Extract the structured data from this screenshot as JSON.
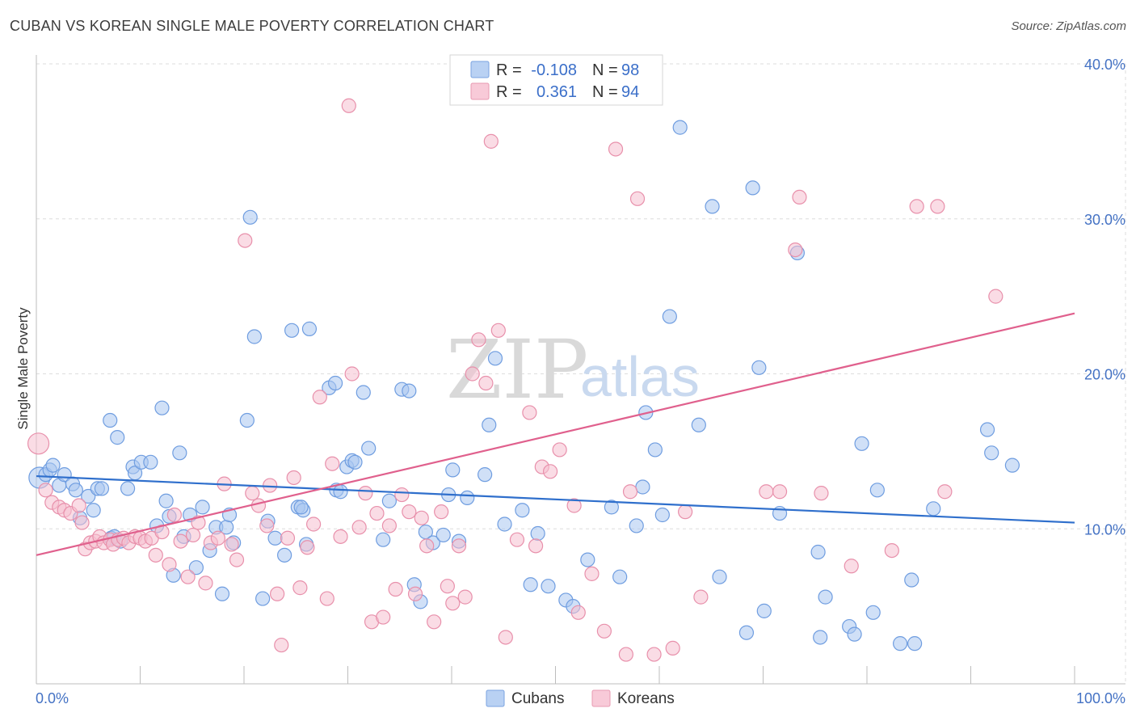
{
  "title": "CUBAN VS KOREAN SINGLE MALE POVERTY CORRELATION CHART",
  "source": "Source: ZipAtlas.com",
  "watermark": {
    "zip": "ZIP",
    "atlas": "atlas"
  },
  "colors": {
    "cubans_fill": "#a9c6f0",
    "cubans_stroke": "#6f9de0",
    "cubans_line": "#2f6fcc",
    "koreans_fill": "#f6c0d0",
    "koreans_stroke": "#e890ab",
    "koreans_line": "#e0608d",
    "grid": "#dddddd",
    "axis_label": "#4472c4"
  },
  "legend": {
    "rows": [
      {
        "r_label": "R =",
        "r_value": "-0.108",
        "n_label": "N =",
        "n_value": "98"
      },
      {
        "r_label": "R =",
        "r_value": "0.361",
        "n_label": "N =",
        "n_value": "94"
      }
    ]
  },
  "chart_data": {
    "type": "scatter",
    "title": "CUBAN VS KOREAN SINGLE MALE POVERTY CORRELATION CHART",
    "xlabel": "",
    "ylabel": "Single Male Poverty",
    "xlim": [
      0,
      100
    ],
    "ylim": [
      0,
      40
    ],
    "x_tick_labels": [
      "0.0%",
      "100.0%"
    ],
    "y_ticks": [
      10,
      20,
      30,
      40
    ],
    "y_tick_labels": [
      "10.0%",
      "20.0%",
      "30.0%",
      "40.0%"
    ],
    "grid": true,
    "legend_position": "top-center",
    "series": [
      {
        "name": "Cubans",
        "trend": {
          "x": [
            0,
            100
          ],
          "y": [
            13.4,
            10.4
          ]
        },
        "points": [
          [
            0.3,
            13.3
          ],
          [
            0.9,
            13.5
          ],
          [
            1.3,
            13.8
          ],
          [
            1.6,
            14.1
          ],
          [
            2.2,
            12.8
          ],
          [
            2.7,
            13.5
          ],
          [
            3.5,
            12.9
          ],
          [
            3.8,
            12.5
          ],
          [
            4.2,
            10.7
          ],
          [
            5.0,
            12.1
          ],
          [
            5.5,
            11.2
          ],
          [
            5.9,
            12.6
          ],
          [
            6.3,
            12.6
          ],
          [
            7.1,
            17.0
          ],
          [
            7.8,
            15.9
          ],
          [
            7.2,
            9.4
          ],
          [
            7.5,
            9.5
          ],
          [
            8.1,
            9.2
          ],
          [
            8.8,
            12.6
          ],
          [
            9.3,
            14.0
          ],
          [
            9.5,
            13.6
          ],
          [
            10.1,
            14.3
          ],
          [
            11.0,
            14.3
          ],
          [
            11.6,
            10.2
          ],
          [
            12.1,
            17.8
          ],
          [
            12.5,
            11.8
          ],
          [
            12.8,
            10.8
          ],
          [
            13.2,
            7.0
          ],
          [
            13.8,
            14.9
          ],
          [
            14.2,
            9.5
          ],
          [
            14.8,
            10.9
          ],
          [
            15.4,
            7.5
          ],
          [
            16.0,
            11.4
          ],
          [
            16.7,
            8.6
          ],
          [
            17.3,
            10.1
          ],
          [
            17.9,
            5.8
          ],
          [
            18.3,
            10.1
          ],
          [
            18.6,
            10.9
          ],
          [
            19.0,
            9.1
          ],
          [
            20.3,
            17.0
          ],
          [
            20.6,
            30.1
          ],
          [
            21.0,
            22.4
          ],
          [
            21.8,
            5.5
          ],
          [
            22.3,
            10.5
          ],
          [
            23.0,
            9.4
          ],
          [
            23.9,
            8.3
          ],
          [
            24.6,
            22.8
          ],
          [
            25.2,
            11.4
          ],
          [
            25.7,
            11.2
          ],
          [
            25.5,
            11.4
          ],
          [
            26.3,
            22.9
          ],
          [
            26.0,
            9.0
          ],
          [
            28.2,
            19.1
          ],
          [
            28.8,
            19.4
          ],
          [
            28.9,
            12.5
          ],
          [
            29.3,
            12.4
          ],
          [
            29.9,
            14.0
          ],
          [
            30.4,
            14.4
          ],
          [
            30.7,
            14.3
          ],
          [
            31.5,
            18.8
          ],
          [
            32.0,
            15.2
          ],
          [
            33.4,
            9.3
          ],
          [
            34.0,
            11.8
          ],
          [
            35.2,
            19.0
          ],
          [
            35.9,
            18.9
          ],
          [
            36.4,
            6.4
          ],
          [
            37.0,
            5.3
          ],
          [
            37.5,
            9.8
          ],
          [
            38.2,
            9.1
          ],
          [
            39.2,
            9.6
          ],
          [
            39.7,
            12.2
          ],
          [
            40.1,
            13.8
          ],
          [
            40.7,
            9.2
          ],
          [
            41.5,
            12.0
          ],
          [
            43.2,
            13.5
          ],
          [
            43.6,
            16.7
          ],
          [
            44.2,
            21.0
          ],
          [
            45.1,
            10.3
          ],
          [
            46.8,
            11.2
          ],
          [
            47.6,
            6.4
          ],
          [
            48.3,
            9.7
          ],
          [
            49.3,
            6.3
          ],
          [
            51.0,
            5.4
          ],
          [
            51.7,
            5.0
          ],
          [
            53.1,
            8.0
          ],
          [
            55.4,
            11.4
          ],
          [
            56.2,
            6.9
          ],
          [
            57.8,
            10.2
          ],
          [
            58.4,
            12.7
          ],
          [
            58.7,
            17.5
          ],
          [
            59.6,
            15.1
          ],
          [
            60.3,
            10.9
          ],
          [
            61.0,
            23.7
          ],
          [
            62.0,
            35.9
          ],
          [
            63.8,
            16.7
          ],
          [
            65.1,
            30.8
          ],
          [
            65.8,
            6.9
          ],
          [
            68.4,
            3.3
          ],
          [
            69.0,
            32.0
          ],
          [
            69.6,
            20.4
          ],
          [
            70.1,
            4.7
          ],
          [
            71.6,
            11.0
          ],
          [
            73.3,
            27.8
          ],
          [
            75.3,
            8.5
          ],
          [
            75.5,
            3.0
          ],
          [
            76.0,
            5.6
          ],
          [
            78.3,
            3.7
          ],
          [
            78.8,
            3.2
          ],
          [
            79.5,
            15.5
          ],
          [
            80.6,
            4.6
          ],
          [
            81.0,
            12.5
          ],
          [
            83.2,
            2.6
          ],
          [
            84.3,
            6.7
          ],
          [
            84.6,
            2.6
          ],
          [
            86.4,
            11.3
          ],
          [
            91.6,
            16.4
          ],
          [
            92.0,
            14.9
          ],
          [
            94.0,
            14.1
          ]
        ]
      },
      {
        "name": "Koreans",
        "trend": {
          "x": [
            0,
            100
          ],
          "y": [
            8.3,
            23.9
          ]
        },
        "points": [
          [
            0.2,
            15.5
          ],
          [
            0.9,
            12.5
          ],
          [
            1.5,
            11.7
          ],
          [
            2.2,
            11.4
          ],
          [
            2.7,
            11.2
          ],
          [
            3.3,
            11.0
          ],
          [
            4.1,
            11.5
          ],
          [
            4.4,
            10.4
          ],
          [
            4.7,
            8.7
          ],
          [
            5.2,
            9.1
          ],
          [
            5.7,
            9.2
          ],
          [
            6.1,
            9.5
          ],
          [
            6.5,
            9.1
          ],
          [
            7.1,
            9.3
          ],
          [
            7.4,
            9.0
          ],
          [
            7.9,
            9.3
          ],
          [
            8.4,
            9.4
          ],
          [
            8.9,
            9.1
          ],
          [
            9.5,
            9.5
          ],
          [
            10.0,
            9.4
          ],
          [
            10.5,
            9.2
          ],
          [
            11.1,
            9.4
          ],
          [
            11.5,
            8.3
          ],
          [
            12.1,
            9.8
          ],
          [
            12.8,
            7.7
          ],
          [
            13.3,
            10.9
          ],
          [
            13.9,
            9.2
          ],
          [
            14.6,
            6.9
          ],
          [
            15.1,
            9.6
          ],
          [
            15.6,
            10.4
          ],
          [
            16.3,
            6.5
          ],
          [
            16.8,
            9.1
          ],
          [
            17.5,
            9.4
          ],
          [
            18.1,
            12.9
          ],
          [
            18.8,
            9.0
          ],
          [
            19.3,
            8.0
          ],
          [
            20.1,
            28.6
          ],
          [
            20.8,
            12.3
          ],
          [
            21.4,
            11.5
          ],
          [
            22.2,
            10.2
          ],
          [
            22.5,
            12.8
          ],
          [
            23.2,
            5.8
          ],
          [
            23.6,
            2.5
          ],
          [
            24.2,
            9.4
          ],
          [
            24.8,
            13.3
          ],
          [
            25.4,
            6.2
          ],
          [
            26.1,
            8.8
          ],
          [
            26.7,
            10.3
          ],
          [
            27.3,
            18.5
          ],
          [
            28.0,
            5.5
          ],
          [
            28.5,
            14.2
          ],
          [
            29.3,
            9.5
          ],
          [
            30.1,
            37.3
          ],
          [
            30.4,
            20.0
          ],
          [
            31.1,
            10.1
          ],
          [
            31.7,
            12.3
          ],
          [
            32.3,
            4.0
          ],
          [
            32.8,
            11.0
          ],
          [
            33.4,
            4.3
          ],
          [
            34.0,
            10.2
          ],
          [
            34.6,
            6.1
          ],
          [
            35.2,
            12.2
          ],
          [
            35.9,
            11.1
          ],
          [
            36.5,
            5.8
          ],
          [
            37.1,
            10.7
          ],
          [
            37.6,
            8.9
          ],
          [
            38.3,
            4.0
          ],
          [
            39.0,
            11.1
          ],
          [
            39.6,
            6.3
          ],
          [
            40.1,
            5.2
          ],
          [
            40.7,
            8.9
          ],
          [
            41.3,
            5.6
          ],
          [
            42.0,
            20.0
          ],
          [
            42.6,
            22.2
          ],
          [
            43.3,
            19.4
          ],
          [
            43.8,
            35.0
          ],
          [
            44.5,
            22.8
          ],
          [
            45.2,
            3.0
          ],
          [
            46.3,
            9.3
          ],
          [
            47.5,
            17.5
          ],
          [
            48.1,
            8.9
          ],
          [
            48.7,
            14.0
          ],
          [
            49.5,
            13.7
          ],
          [
            50.4,
            15.1
          ],
          [
            51.8,
            11.5
          ],
          [
            52.2,
            4.6
          ],
          [
            53.5,
            7.1
          ],
          [
            54.7,
            3.4
          ],
          [
            55.8,
            34.5
          ],
          [
            56.8,
            1.9
          ],
          [
            57.2,
            12.4
          ],
          [
            57.9,
            31.3
          ],
          [
            59.5,
            1.9
          ],
          [
            61.3,
            2.3
          ],
          [
            62.5,
            11.1
          ],
          [
            64.0,
            5.6
          ],
          [
            70.3,
            12.4
          ],
          [
            71.6,
            12.4
          ],
          [
            73.1,
            28.0
          ],
          [
            73.5,
            31.4
          ],
          [
            75.6,
            12.3
          ],
          [
            78.5,
            7.6
          ],
          [
            82.4,
            8.6
          ],
          [
            84.8,
            30.8
          ],
          [
            86.8,
            30.8
          ],
          [
            87.5,
            12.4
          ],
          [
            92.4,
            25.0
          ]
        ]
      }
    ],
    "bottom_legend": [
      "Cubans",
      "Koreans"
    ]
  }
}
